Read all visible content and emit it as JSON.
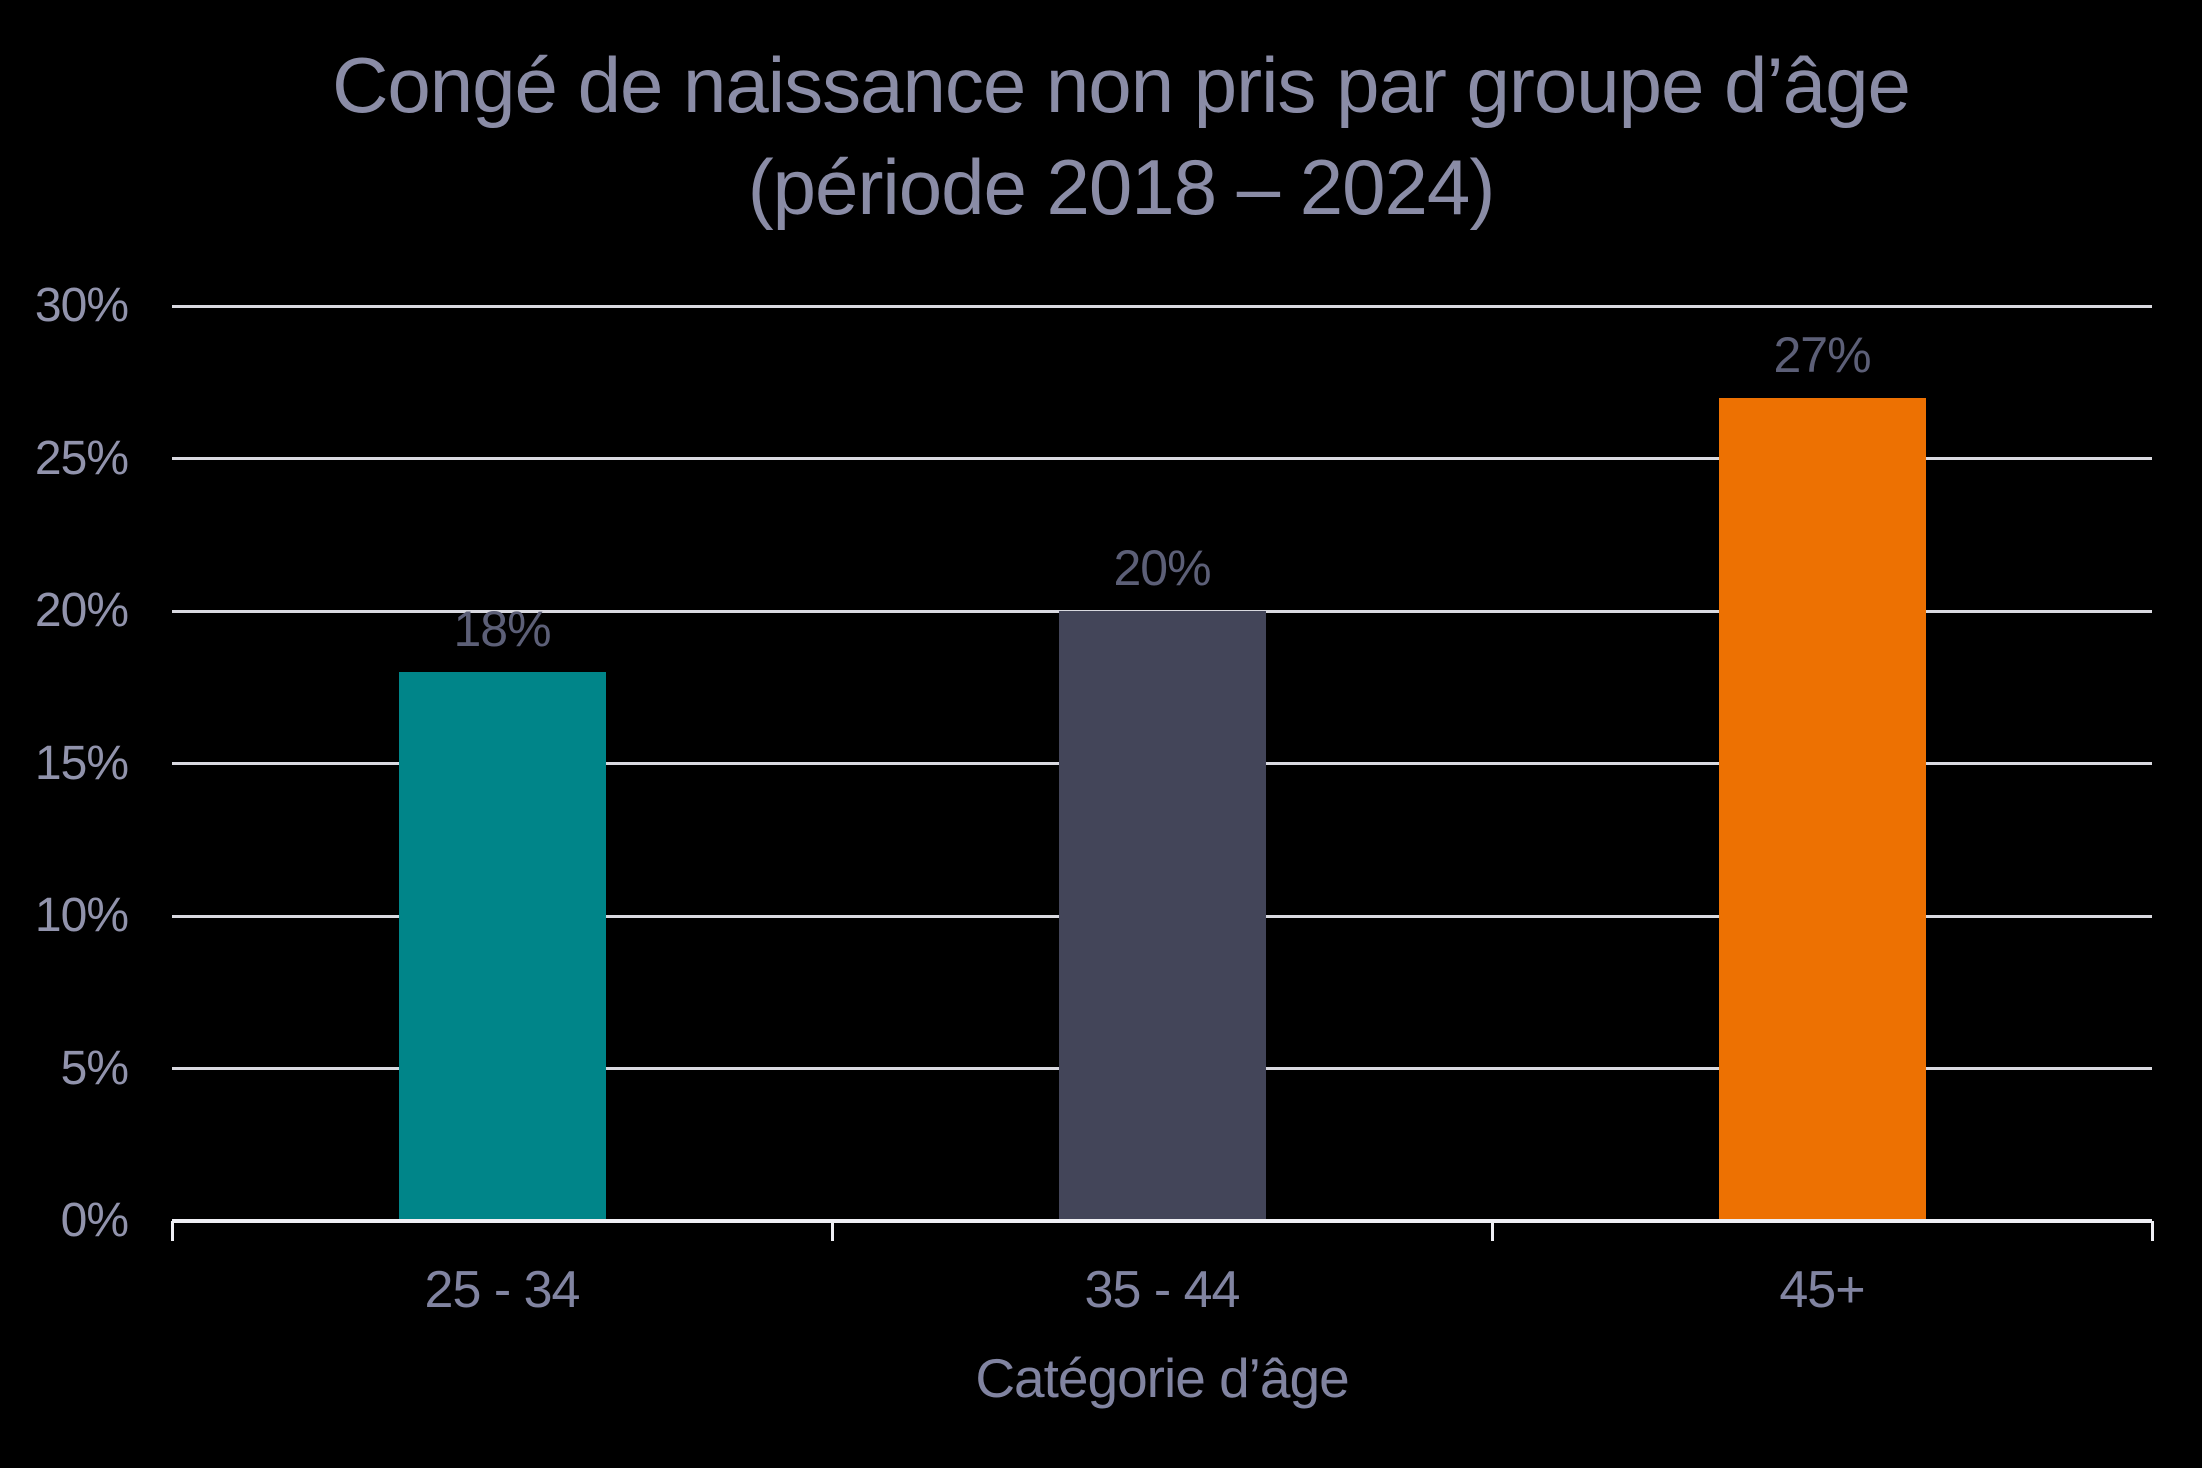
{
  "chart_data": {
    "type": "bar",
    "title": "Congé de naissance non pris par groupe d’âge",
    "subtitle": "(période 2018 – 2024)",
    "categories": [
      "25 - 34",
      "35 - 44",
      "45+"
    ],
    "values": [
      18,
      20,
      27
    ],
    "value_labels": [
      "18%",
      "20%",
      "27%"
    ],
    "bar_colors": [
      "#008589",
      "#434559",
      "#ED7102"
    ],
    "xlabel": "Catégorie d’âge",
    "ylabel": "",
    "ylim": [
      0,
      30
    ],
    "ytick_step": 5,
    "ytick_labels": [
      "0%",
      "5%",
      "10%",
      "15%",
      "20%",
      "25%",
      "30%"
    ],
    "grid": true,
    "legend": false,
    "colors": {
      "background": "#000000",
      "title": "#8A8CA6",
      "axis_tick_labels": "#9193AC",
      "category_labels": "#8184A1",
      "axis_title": "#8184A1",
      "data_labels": "#5C5F77",
      "gridline": "#D9D9E0",
      "axis_line": "#EFEFF4"
    }
  }
}
